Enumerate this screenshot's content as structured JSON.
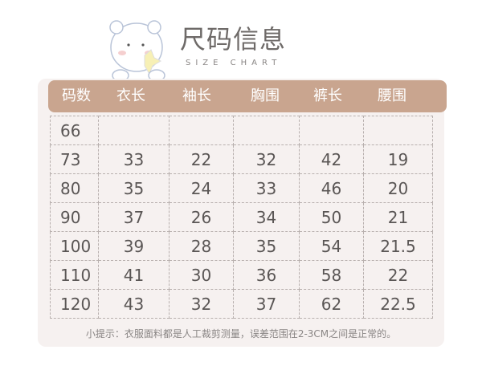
{
  "title": "尺码信息",
  "subtitle": "SIZE CHART",
  "headers": [
    "码数",
    "衣长",
    "袖长",
    "胸围",
    "裤长",
    "腰围"
  ],
  "rows": [
    [
      "66",
      "",
      "",
      "",
      "",
      ""
    ],
    [
      "73",
      "33",
      "22",
      "32",
      "42",
      "19"
    ],
    [
      "80",
      "35",
      "24",
      "33",
      "46",
      "20"
    ],
    [
      "90",
      "37",
      "26",
      "34",
      "50",
      "21"
    ],
    [
      "100",
      "39",
      "28",
      "35",
      "54",
      "21.5"
    ],
    [
      "110",
      "41",
      "30",
      "36",
      "58",
      "22"
    ],
    [
      "120",
      "43",
      "32",
      "37",
      "62",
      "22.5"
    ]
  ],
  "note": "小提示：衣服面料都是人工裁剪测量，误差范围在2-3CM之间是正常的。",
  "colors": {
    "header": "#c9a58f",
    "card": "#f6f1f0"
  }
}
